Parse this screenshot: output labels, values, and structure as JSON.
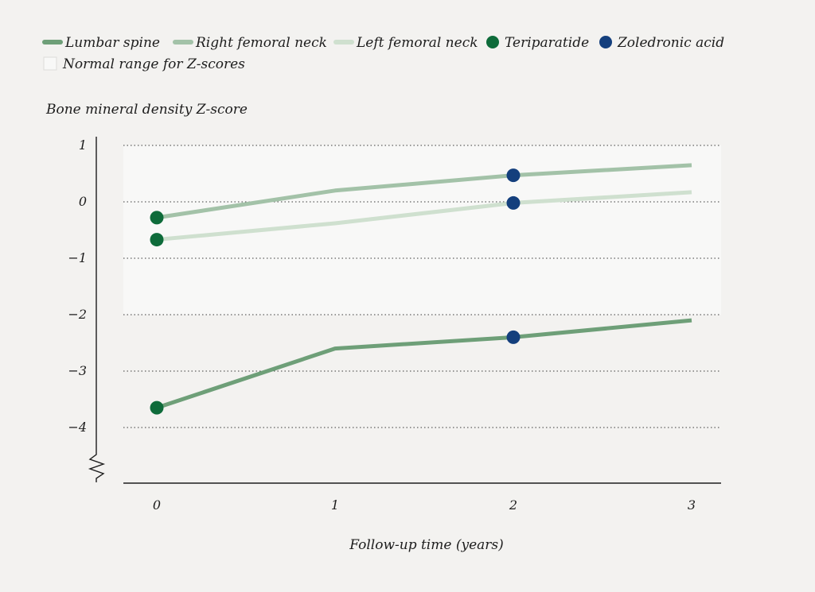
{
  "chart_data": {
    "type": "line",
    "ylabel": "Bone mineral density Z-score",
    "xlabel": "Follow-up time (years)",
    "x": [
      0,
      1,
      2,
      3
    ],
    "xticks": [
      "0",
      "1",
      "2",
      "3"
    ],
    "yticks": [
      "1",
      "0",
      "−1",
      "−2",
      "−3",
      "−4"
    ],
    "ytick_values": [
      1,
      0,
      -1,
      -2,
      -3,
      -4
    ],
    "ylim": [
      -4.5,
      1
    ],
    "xlim": [
      -0.2,
      3.15
    ],
    "grid": true,
    "y_axis_break": true,
    "legend_position": "top-left",
    "normal_range": {
      "label": "Normal range for Z-scores",
      "ymin": -2,
      "ymax": 1,
      "color": "#f8f8f7"
    },
    "series": [
      {
        "name": "Lumbar spine",
        "values": [
          -3.65,
          -2.6,
          -2.4,
          -2.1
        ],
        "color": "#6e9f78"
      },
      {
        "name": "Right femoral neck",
        "values": [
          -0.28,
          0.2,
          0.47,
          0.65
        ],
        "color": "#a3c2a8"
      },
      {
        "name": "Left femoral neck",
        "values": [
          -0.67,
          -0.38,
          -0.02,
          0.17
        ],
        "color": "#cfe0cf"
      }
    ],
    "markers": [
      {
        "name": "Teriparatide",
        "color": "#0e6b3a",
        "points": [
          {
            "x": 0,
            "y": -3.65
          },
          {
            "x": 0,
            "y": -0.28
          },
          {
            "x": 0,
            "y": -0.67
          }
        ]
      },
      {
        "name": "Zoledronic acid",
        "color": "#143f7d",
        "points": [
          {
            "x": 2,
            "y": -2.4
          },
          {
            "x": 2,
            "y": 0.47
          },
          {
            "x": 2,
            "y": -0.02
          }
        ]
      }
    ]
  }
}
